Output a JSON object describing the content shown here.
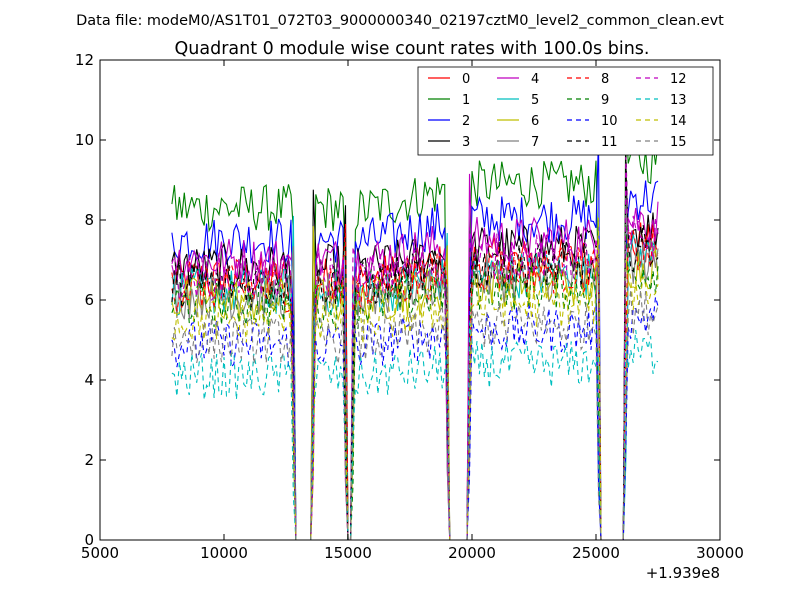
{
  "header": {
    "datafile": "Data file: modeM0/AS1T01_072T03_9000000340_02197cztM0_level2_common_clean.evt"
  },
  "chart_data": {
    "type": "line",
    "title": "Quadrant 0 module wise count rates with 100.0s bins.",
    "xlabel": "",
    "ylabel": "",
    "xlim": [
      5000,
      30000
    ],
    "ylim": [
      0,
      12
    ],
    "x_ticks": [
      "5000",
      "10000",
      "15000",
      "20000",
      "25000",
      "30000"
    ],
    "y_ticks": [
      "0",
      "2",
      "4",
      "6",
      "8",
      "10",
      "12"
    ],
    "x_offset_label": "+1.939e8",
    "grid": false,
    "legend_position": "top-right",
    "time_range": [
      7900,
      27500
    ],
    "bin_seconds": 100,
    "gaps": [
      {
        "start": 12900,
        "end": 13500
      },
      {
        "start": 15000,
        "end": 15150
      },
      {
        "start": 19100,
        "end": 19800
      },
      {
        "start": 25200,
        "end": 26100
      }
    ],
    "series": [
      {
        "name": "0",
        "color": "#ff0000",
        "dash": "solid",
        "level": 6.5
      },
      {
        "name": "1",
        "color": "#008000",
        "dash": "solid",
        "level": 8.3
      },
      {
        "name": "2",
        "color": "#0000ff",
        "dash": "solid",
        "level": 7.5
      },
      {
        "name": "3",
        "color": "#000000",
        "dash": "solid",
        "level": 6.8
      },
      {
        "name": "4",
        "color": "#bf00bf",
        "dash": "solid",
        "level": 7.0
      },
      {
        "name": "5",
        "color": "#00bfbf",
        "dash": "solid",
        "level": 6.2
      },
      {
        "name": "6",
        "color": "#bfbf00",
        "dash": "solid",
        "level": 6.0
      },
      {
        "name": "7",
        "color": "#808080",
        "dash": "solid",
        "level": 6.1
      },
      {
        "name": "8",
        "color": "#ff0000",
        "dash": "dashed",
        "level": 6.3
      },
      {
        "name": "9",
        "color": "#008000",
        "dash": "dashed",
        "level": 5.9
      },
      {
        "name": "10",
        "color": "#0000ff",
        "dash": "dashed",
        "level": 4.9
      },
      {
        "name": "11",
        "color": "#000000",
        "dash": "dashed",
        "level": 6.4
      },
      {
        "name": "12",
        "color": "#bf00bf",
        "dash": "dashed",
        "level": 6.6
      },
      {
        "name": "13",
        "color": "#00bfbf",
        "dash": "dashed",
        "level": 4.1
      },
      {
        "name": "14",
        "color": "#bfbf00",
        "dash": "dashed",
        "level": 5.5
      },
      {
        "name": "15",
        "color": "#808080",
        "dash": "dashed",
        "level": 5.0
      }
    ]
  }
}
